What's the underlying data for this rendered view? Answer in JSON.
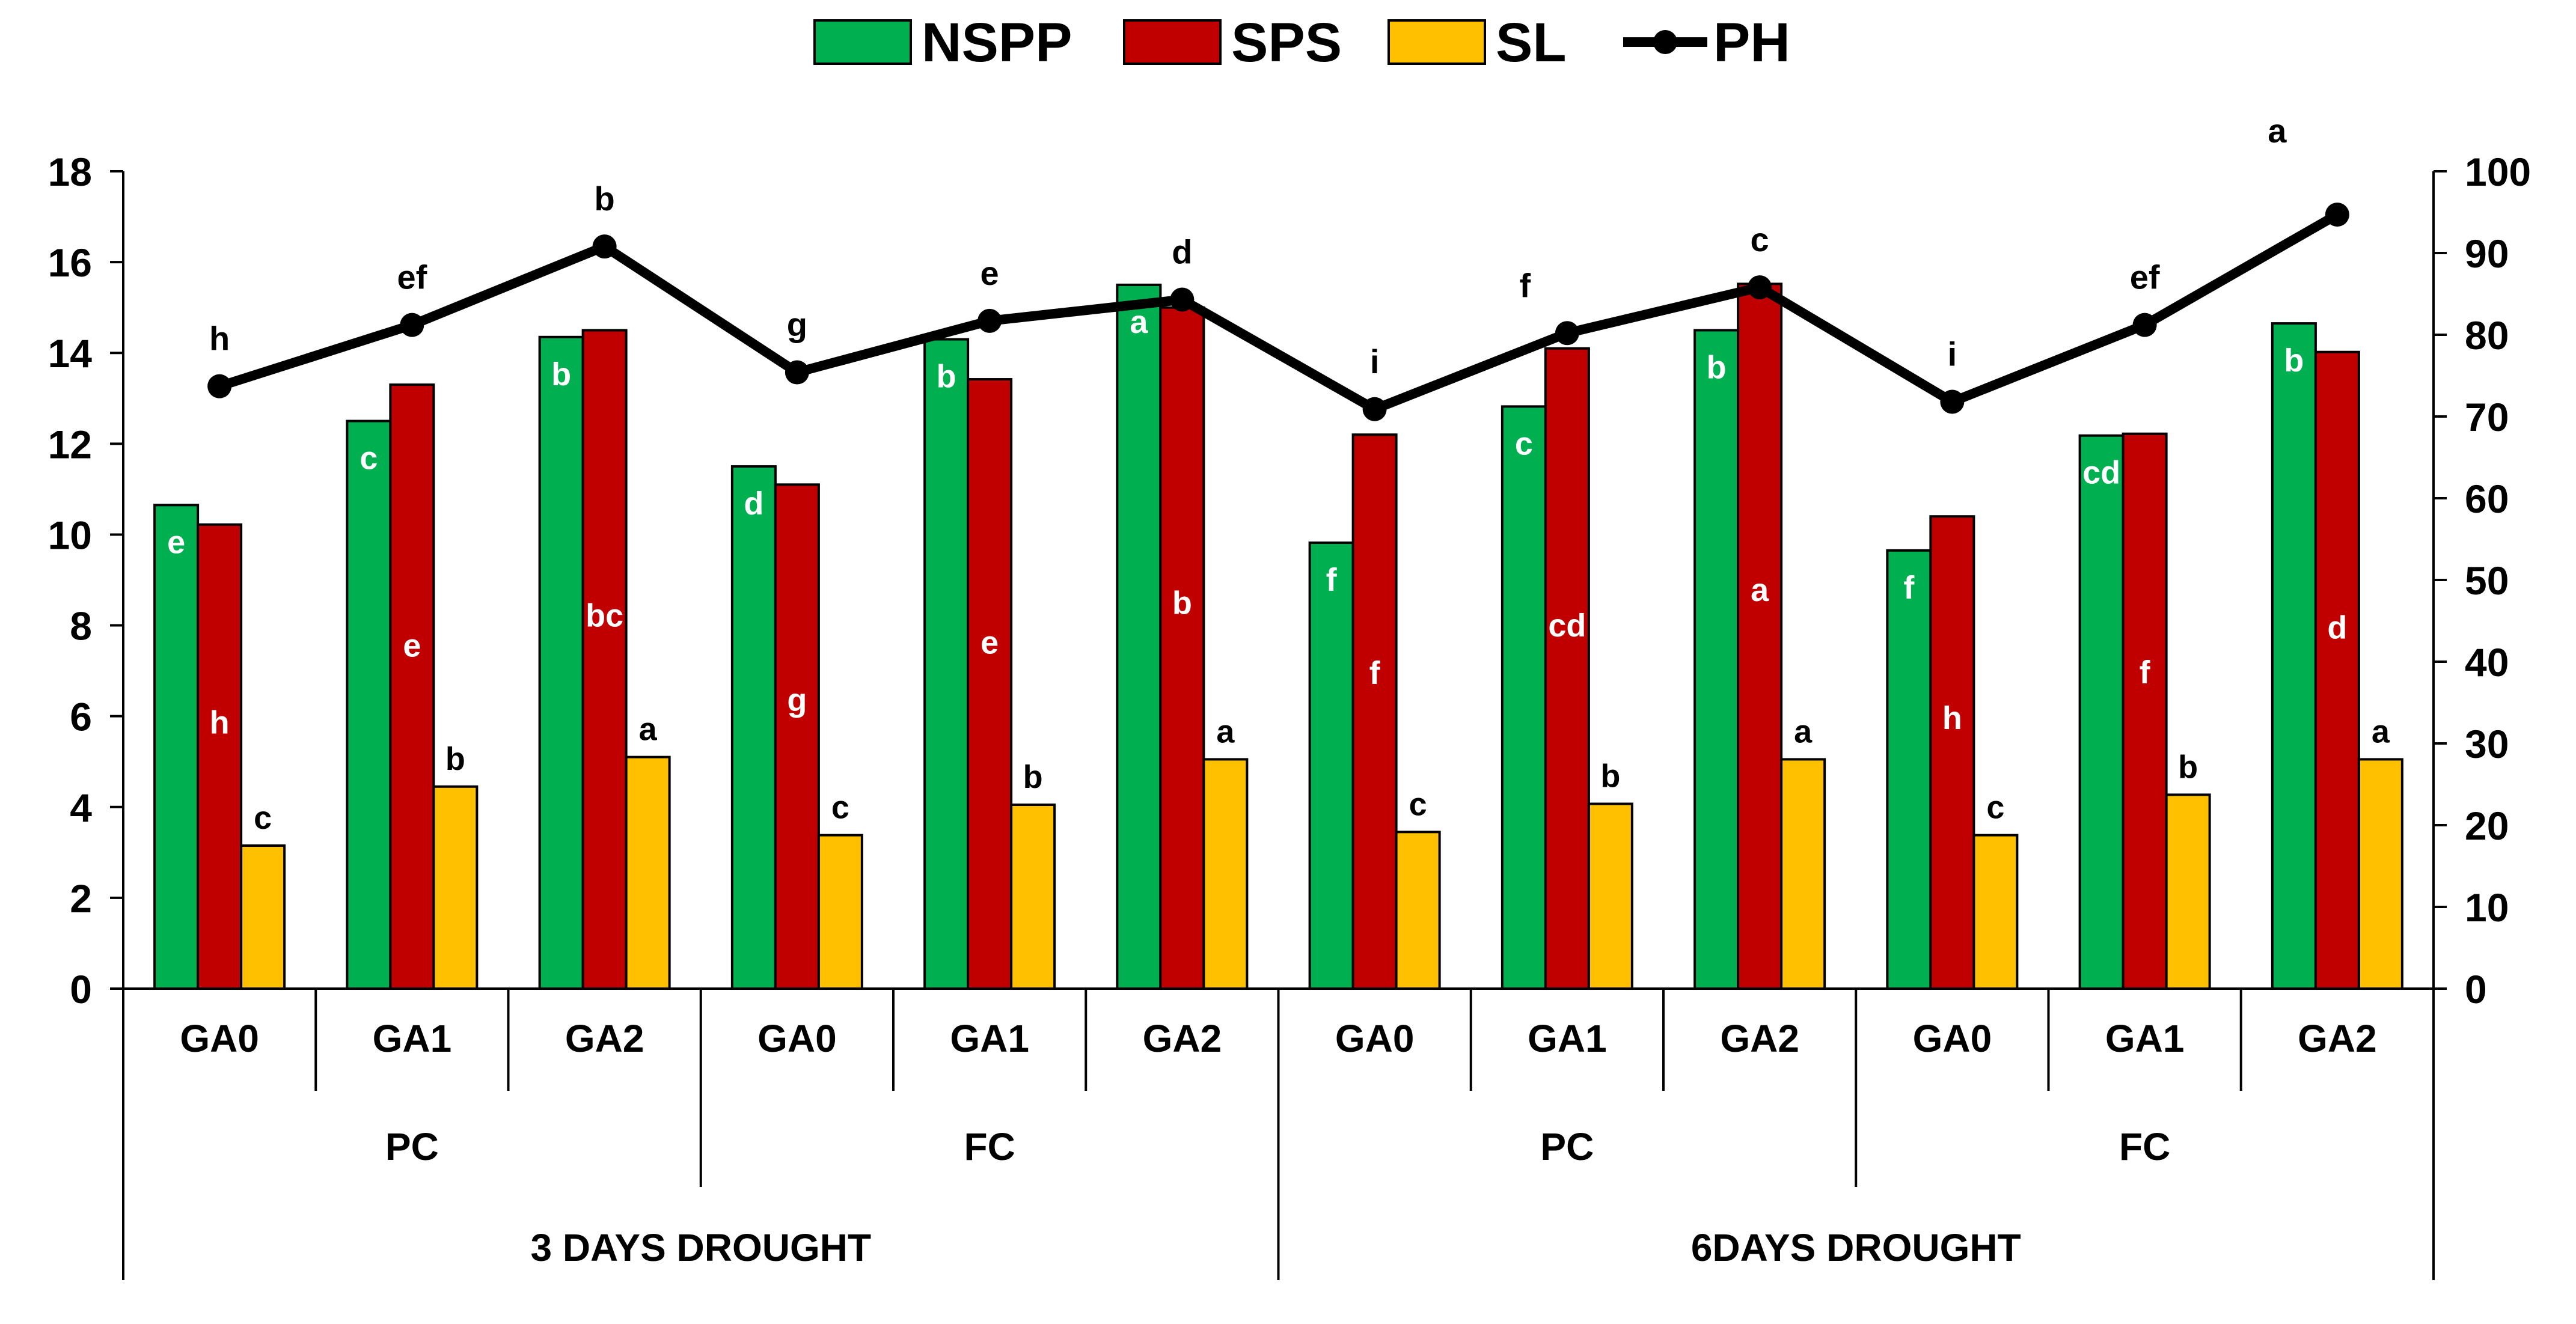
{
  "chart_data": {
    "type": "bar+line",
    "title": "",
    "legend": {
      "placement": "top-center",
      "entries": [
        {
          "key": "NSPP",
          "label": "NSPP",
          "kind": "bar"
        },
        {
          "key": "SPS",
          "label": "SPS",
          "kind": "bar"
        },
        {
          "key": "SL",
          "label": "SL",
          "kind": "bar"
        },
        {
          "key": "PH",
          "label": "PH",
          "kind": "line"
        }
      ]
    },
    "categories": [
      "GA0",
      "GA1",
      "GA2",
      "GA0",
      "GA1",
      "GA2",
      "GA0",
      "GA1",
      "GA2",
      "GA0",
      "GA1",
      "GA2"
    ],
    "group_level2": [
      {
        "label": "PC",
        "span": 3
      },
      {
        "label": "FC",
        "span": 3
      },
      {
        "label": "PC",
        "span": 3
      },
      {
        "label": "FC",
        "span": 3
      }
    ],
    "group_level3": [
      {
        "label": "3 DAYS DROUGHT",
        "span": 6
      },
      {
        "label": "6DAYS DROUGHT",
        "span": 6
      }
    ],
    "y_left": {
      "min": 0,
      "max": 18,
      "step": 2,
      "ticks": [
        "0",
        "2",
        "4",
        "6",
        "8",
        "10",
        "12",
        "14",
        "16",
        "18"
      ]
    },
    "y_right": {
      "min": 0,
      "max": 100,
      "step": 10,
      "ticks": [
        "0",
        "10",
        "20",
        "30",
        "40",
        "50",
        "60",
        "70",
        "80",
        "90",
        "100"
      ]
    },
    "grid": false,
    "series": [
      {
        "name": "NSPP",
        "axis": "left",
        "color": "#00B050",
        "values": [
          10.65,
          12.5,
          14.35,
          11.5,
          14.3,
          15.5,
          9.82,
          12.82,
          14.5,
          9.65,
          12.18,
          14.65
        ],
        "letters": [
          "e",
          "c",
          "b",
          "d",
          "b",
          "a",
          "f",
          "c",
          "b",
          "f",
          "cd",
          "b"
        ]
      },
      {
        "name": "SPS",
        "axis": "left",
        "color": "#C00000",
        "values": [
          10.22,
          13.3,
          14.5,
          11.1,
          13.42,
          15.0,
          12.2,
          14.1,
          15.52,
          10.4,
          12.22,
          14.02
        ],
        "letters": [
          "h",
          "e",
          "bc",
          "g",
          "e",
          "b",
          "f",
          "cd",
          "a",
          "h",
          "f",
          "d"
        ]
      },
      {
        "name": "SL",
        "axis": "left",
        "color": "#FFC000",
        "values": [
          3.15,
          4.45,
          5.1,
          3.38,
          4.05,
          5.05,
          3.45,
          4.07,
          5.05,
          3.38,
          4.27,
          5.05
        ],
        "letters": [
          "c",
          "b",
          "a",
          "c",
          "b",
          "a",
          "c",
          "b",
          "a",
          "c",
          "b",
          "a"
        ]
      },
      {
        "name": "PH",
        "axis": "right",
        "color": "#000000",
        "values": [
          73.7,
          81.2,
          90.8,
          75.4,
          81.7,
          84.3,
          70.9,
          80.2,
          85.8,
          71.8,
          81.2,
          94.7
        ],
        "letters": [
          "h",
          "ef",
          "b",
          "g",
          "e",
          "d",
          "i",
          "f",
          "c",
          "i",
          "ef",
          "a"
        ]
      }
    ]
  }
}
